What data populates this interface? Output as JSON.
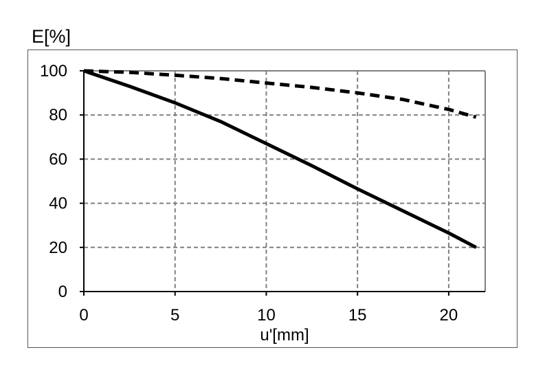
{
  "chart_data": {
    "type": "line",
    "title": "",
    "xlabel": "u'[mm]",
    "ylabel": "E[%]",
    "xlim": [
      0,
      22
    ],
    "ylim": [
      0,
      100
    ],
    "xticks": [
      0,
      5,
      10,
      15,
      20
    ],
    "yticks": [
      0,
      20,
      40,
      60,
      80,
      100
    ],
    "grid": true,
    "legend": "none",
    "series": [
      {
        "style": "solid",
        "color": "#000000",
        "x": [
          0,
          2.5,
          5,
          7.5,
          10,
          12.5,
          15,
          17.5,
          20,
          21.5
        ],
        "y": [
          100,
          93,
          85.5,
          77,
          67,
          57,
          46.5,
          36.5,
          26.5,
          20
        ]
      },
      {
        "style": "dashed",
        "color": "#000000",
        "x": [
          0,
          2.5,
          5,
          7.5,
          10,
          12.5,
          15,
          17.5,
          20,
          21.5
        ],
        "y": [
          100,
          99.3,
          98,
          96.5,
          94.5,
          92.5,
          90,
          87,
          82.5,
          79
        ]
      }
    ]
  }
}
